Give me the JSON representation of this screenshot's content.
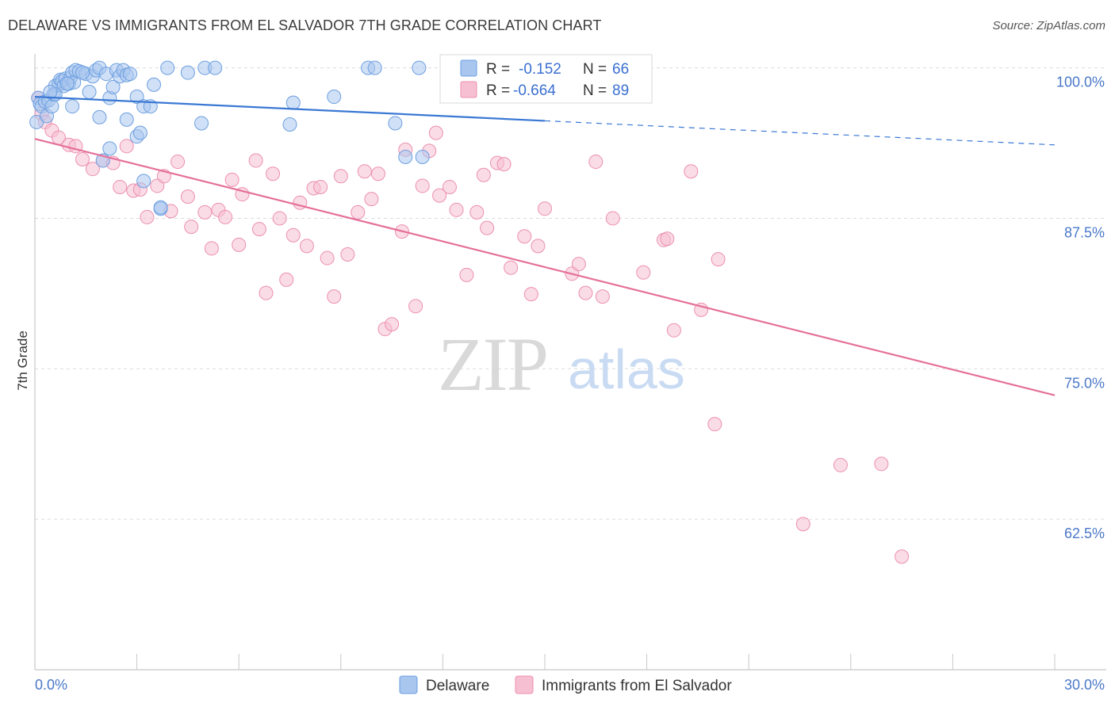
{
  "title": "DELAWARE VS IMMIGRANTS FROM EL SALVADOR 7TH GRADE CORRELATION CHART",
  "source": "Source: ZipAtlas.com",
  "watermark": {
    "zip": "ZIP",
    "atlas": "atlas"
  },
  "colors": {
    "blue_fill": "#a9c6ef",
    "blue_stroke": "#6d9fe0",
    "blue_line": "#3a78d4",
    "pink_fill": "#f6bfd2",
    "pink_stroke": "#ec8fb0",
    "pink_line": "#e5709a",
    "grid": "#dcdcdc",
    "tick_text": "#4a78c8"
  },
  "legend": {
    "blue": {
      "r_label": "R =",
      "r_value": "-0.152",
      "n_label": "N =",
      "n_value": "66"
    },
    "pink": {
      "r_label": "R =",
      "r_value": "-0.664",
      "n_label": "N =",
      "n_value": "89"
    }
  },
  "chart_data": {
    "type": "scatter",
    "title": "DELAWARE VS IMMIGRANTS FROM EL SALVADOR 7TH GRADE CORRELATION CHART",
    "xlabel": "",
    "ylabel": "7th Grade",
    "xlim": [
      0,
      30
    ],
    "ylim": [
      50,
      100.5
    ],
    "x_tick_labels": [
      "0.0%",
      "30.0%"
    ],
    "y_ticks": [
      62.5,
      75.0,
      87.5,
      100.0
    ],
    "y_tick_labels": [
      "62.5%",
      "75.0%",
      "87.5%",
      "100.0%"
    ],
    "grid": true,
    "legend_position": "top-center",
    "series": [
      {
        "name": "Delaware",
        "color": "#a9c6ef",
        "trend": {
          "x": [
            0,
            15,
            30
          ],
          "y": [
            97.6,
            95.6,
            93.6
          ],
          "solid_until": 15
        },
        "points": [
          [
            0.05,
            95.5
          ],
          [
            0.1,
            97.5
          ],
          [
            0.15,
            97.0
          ],
          [
            0.2,
            96.8
          ],
          [
            0.3,
            97.2
          ],
          [
            0.35,
            96.0
          ],
          [
            0.4,
            97.3
          ],
          [
            0.5,
            96.8
          ],
          [
            0.55,
            97.8
          ],
          [
            0.6,
            98.5
          ],
          [
            0.7,
            98.6
          ],
          [
            0.75,
            99.0
          ],
          [
            0.8,
            98.9
          ],
          [
            0.85,
            98.5
          ],
          [
            0.9,
            99.1
          ],
          [
            1.0,
            98.7
          ],
          [
            1.05,
            99.2
          ],
          [
            1.1,
            99.6
          ],
          [
            1.15,
            98.8
          ],
          [
            1.2,
            99.8
          ],
          [
            1.3,
            99.7
          ],
          [
            1.5,
            99.5
          ],
          [
            1.6,
            98.0
          ],
          [
            1.7,
            99.3
          ],
          [
            1.8,
            99.8
          ],
          [
            1.9,
            100.0
          ],
          [
            2.1,
            99.5
          ],
          [
            2.2,
            97.5
          ],
          [
            2.3,
            98.4
          ],
          [
            2.4,
            99.8
          ],
          [
            2.5,
            99.3
          ],
          [
            2.6,
            99.8
          ],
          [
            2.7,
            99.4
          ],
          [
            2.8,
            99.5
          ],
          [
            0.6,
            97.8
          ],
          [
            1.1,
            96.8
          ],
          [
            1.9,
            95.9
          ],
          [
            2.2,
            93.3
          ],
          [
            2.7,
            95.7
          ],
          [
            3.0,
            97.6
          ],
          [
            3.0,
            94.3
          ],
          [
            3.1,
            94.6
          ],
          [
            3.2,
            96.8
          ],
          [
            3.4,
            96.8
          ],
          [
            3.5,
            98.6
          ],
          [
            3.7,
            88.3
          ],
          [
            3.9,
            100.0
          ],
          [
            4.5,
            99.6
          ],
          [
            4.9,
            95.4
          ],
          [
            5.0,
            100.0
          ],
          [
            5.3,
            100.0
          ],
          [
            3.2,
            90.6
          ],
          [
            3.7,
            88.4
          ],
          [
            7.5,
            95.3
          ],
          [
            7.6,
            97.1
          ],
          [
            8.8,
            97.6
          ],
          [
            9.8,
            100.0
          ],
          [
            10.0,
            100.0
          ],
          [
            10.6,
            95.4
          ],
          [
            10.9,
            92.6
          ],
          [
            11.3,
            100.0
          ],
          [
            11.4,
            92.6
          ],
          [
            2.0,
            92.3
          ],
          [
            1.4,
            99.6
          ],
          [
            0.95,
            98.7
          ],
          [
            0.45,
            98.0
          ]
        ]
      },
      {
        "name": "Immigrants from El Salvador",
        "color": "#f6bfd2",
        "trend": {
          "x": [
            0,
            30
          ],
          "y": [
            94.1,
            72.8
          ]
        },
        "points": [
          [
            0.1,
            97.5
          ],
          [
            0.2,
            96.2
          ],
          [
            0.3,
            95.5
          ],
          [
            0.5,
            94.8
          ],
          [
            0.7,
            94.2
          ],
          [
            1.0,
            93.6
          ],
          [
            1.2,
            93.5
          ],
          [
            1.4,
            92.4
          ],
          [
            1.7,
            91.6
          ],
          [
            2.0,
            92.3
          ],
          [
            2.3,
            92.1
          ],
          [
            2.5,
            90.1
          ],
          [
            2.7,
            93.5
          ],
          [
            2.9,
            89.8
          ],
          [
            3.1,
            89.9
          ],
          [
            3.3,
            87.6
          ],
          [
            3.6,
            90.2
          ],
          [
            3.8,
            91.0
          ],
          [
            4.0,
            88.1
          ],
          [
            4.2,
            92.2
          ],
          [
            4.5,
            89.3
          ],
          [
            4.6,
            86.8
          ],
          [
            5.0,
            88.0
          ],
          [
            5.2,
            85.0
          ],
          [
            5.4,
            88.2
          ],
          [
            5.6,
            87.6
          ],
          [
            5.8,
            90.7
          ],
          [
            6.0,
            85.3
          ],
          [
            6.1,
            89.5
          ],
          [
            6.5,
            92.3
          ],
          [
            6.6,
            86.6
          ],
          [
            6.8,
            81.3
          ],
          [
            7.0,
            91.2
          ],
          [
            7.2,
            87.5
          ],
          [
            7.4,
            82.4
          ],
          [
            7.6,
            86.1
          ],
          [
            7.8,
            88.8
          ],
          [
            8.0,
            85.2
          ],
          [
            8.2,
            90.0
          ],
          [
            8.4,
            90.1
          ],
          [
            8.6,
            84.2
          ],
          [
            8.8,
            81.0
          ],
          [
            9.0,
            91.0
          ],
          [
            9.2,
            84.5
          ],
          [
            9.5,
            88.0
          ],
          [
            9.7,
            91.4
          ],
          [
            9.9,
            89.1
          ],
          [
            10.1,
            91.2
          ],
          [
            10.3,
            78.3
          ],
          [
            10.5,
            78.7
          ],
          [
            10.8,
            86.4
          ],
          [
            11.2,
            80.2
          ],
          [
            11.4,
            90.2
          ],
          [
            11.6,
            93.1
          ],
          [
            11.8,
            94.6
          ],
          [
            11.9,
            89.4
          ],
          [
            12.2,
            90.1
          ],
          [
            12.4,
            88.2
          ],
          [
            12.7,
            82.8
          ],
          [
            13.0,
            88.0
          ],
          [
            13.2,
            91.1
          ],
          [
            13.3,
            86.7
          ],
          [
            13.6,
            92.1
          ],
          [
            14.0,
            83.4
          ],
          [
            14.4,
            86.0
          ],
          [
            14.6,
            81.2
          ],
          [
            14.8,
            85.2
          ],
          [
            15.0,
            88.3
          ],
          [
            15.8,
            82.9
          ],
          [
            16.0,
            83.7
          ],
          [
            16.2,
            81.3
          ],
          [
            16.5,
            92.2
          ],
          [
            16.7,
            81.0
          ],
          [
            17.0,
            87.5
          ],
          [
            17.9,
            83.0
          ],
          [
            18.5,
            85.7
          ],
          [
            18.8,
            78.2
          ],
          [
            19.3,
            91.4
          ],
          [
            19.6,
            79.9
          ],
          [
            20.1,
            84.1
          ],
          [
            20.0,
            70.4
          ],
          [
            22.6,
            62.1
          ],
          [
            23.7,
            67.0
          ],
          [
            24.9,
            67.1
          ],
          [
            25.5,
            59.4
          ],
          [
            13.8,
            92.0
          ],
          [
            10.9,
            93.2
          ],
          [
            18.6,
            85.8
          ],
          [
            16.0,
            98.3
          ]
        ]
      }
    ]
  },
  "bottom_legend": [
    {
      "label": "Delaware",
      "swatch": "blue"
    },
    {
      "label": "Immigrants from El Salvador",
      "swatch": "pink"
    }
  ]
}
